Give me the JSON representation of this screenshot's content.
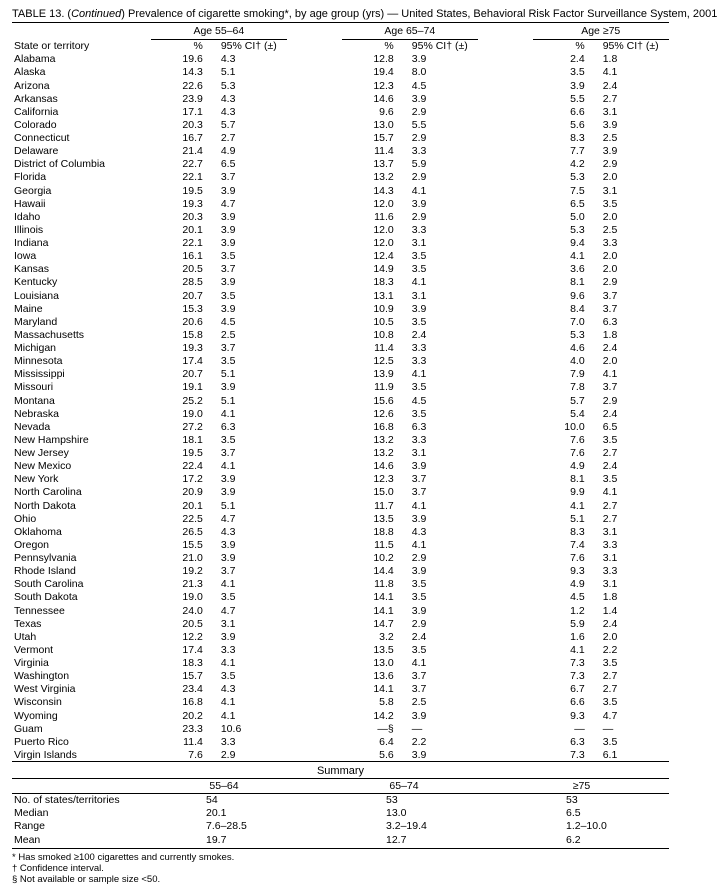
{
  "title_prefix": "TABLE 13. (",
  "title_cont": "Continued",
  "title_rest": ") Prevalence of cigarette smoking*, by age group (yrs) — United States, Behavioral Risk Factor Surveillance System, 2001",
  "group_labels": [
    "Age 55–64",
    "Age 65–74",
    "Age ≥75"
  ],
  "col1_header": "State or territory",
  "pct_header": "%",
  "ci_header": "95% CI† (±)",
  "rows": [
    {
      "s": "Alabama",
      "p1": "19.6",
      "c1": "4.3",
      "p2": "12.8",
      "c2": "3.9",
      "p3": "2.4",
      "c3": "1.8"
    },
    {
      "s": "Alaska",
      "p1": "14.3",
      "c1": "5.1",
      "p2": "19.4",
      "c2": "8.0",
      "p3": "3.5",
      "c3": "4.1"
    },
    {
      "s": "Arizona",
      "p1": "22.6",
      "c1": "5.3",
      "p2": "12.3",
      "c2": "4.5",
      "p3": "3.9",
      "c3": "2.4"
    },
    {
      "s": "Arkansas",
      "p1": "23.9",
      "c1": "4.3",
      "p2": "14.6",
      "c2": "3.9",
      "p3": "5.5",
      "c3": "2.7"
    },
    {
      "s": "California",
      "p1": "17.1",
      "c1": "4.3",
      "p2": "9.6",
      "c2": "2.9",
      "p3": "6.6",
      "c3": "3.1"
    },
    {
      "s": "Colorado",
      "p1": "20.3",
      "c1": "5.7",
      "p2": "13.0",
      "c2": "5.5",
      "p3": "5.6",
      "c3": "3.9"
    },
    {
      "s": "Connecticut",
      "p1": "16.7",
      "c1": "2.7",
      "p2": "15.7",
      "c2": "2.9",
      "p3": "8.3",
      "c3": "2.5"
    },
    {
      "s": "Delaware",
      "p1": "21.4",
      "c1": "4.9",
      "p2": "11.4",
      "c2": "3.3",
      "p3": "7.7",
      "c3": "3.9"
    },
    {
      "s": "District of Columbia",
      "p1": "22.7",
      "c1": "6.5",
      "p2": "13.7",
      "c2": "5.9",
      "p3": "4.2",
      "c3": "2.9"
    },
    {
      "s": "Florida",
      "p1": "22.1",
      "c1": "3.7",
      "p2": "13.2",
      "c2": "2.9",
      "p3": "5.3",
      "c3": "2.0"
    },
    {
      "s": "Georgia",
      "p1": "19.5",
      "c1": "3.9",
      "p2": "14.3",
      "c2": "4.1",
      "p3": "7.5",
      "c3": "3.1"
    },
    {
      "s": "Hawaii",
      "p1": "19.3",
      "c1": "4.7",
      "p2": "12.0",
      "c2": "3.9",
      "p3": "6.5",
      "c3": "3.5"
    },
    {
      "s": "Idaho",
      "p1": "20.3",
      "c1": "3.9",
      "p2": "11.6",
      "c2": "2.9",
      "p3": "5.0",
      "c3": "2.0"
    },
    {
      "s": "Illinois",
      "p1": "20.1",
      "c1": "3.9",
      "p2": "12.0",
      "c2": "3.3",
      "p3": "5.3",
      "c3": "2.5"
    },
    {
      "s": "Indiana",
      "p1": "22.1",
      "c1": "3.9",
      "p2": "12.0",
      "c2": "3.1",
      "p3": "9.4",
      "c3": "3.3"
    },
    {
      "s": "Iowa",
      "p1": "16.1",
      "c1": "3.5",
      "p2": "12.4",
      "c2": "3.5",
      "p3": "4.1",
      "c3": "2.0"
    },
    {
      "s": "Kansas",
      "p1": "20.5",
      "c1": "3.7",
      "p2": "14.9",
      "c2": "3.5",
      "p3": "3.6",
      "c3": "2.0"
    },
    {
      "s": "Kentucky",
      "p1": "28.5",
      "c1": "3.9",
      "p2": "18.3",
      "c2": "4.1",
      "p3": "8.1",
      "c3": "2.9"
    },
    {
      "s": "Louisiana",
      "p1": "20.7",
      "c1": "3.5",
      "p2": "13.1",
      "c2": "3.1",
      "p3": "9.6",
      "c3": "3.7"
    },
    {
      "s": "Maine",
      "p1": "15.3",
      "c1": "3.9",
      "p2": "10.9",
      "c2": "3.9",
      "p3": "8.4",
      "c3": "3.7"
    },
    {
      "s": "Maryland",
      "p1": "20.6",
      "c1": "4.5",
      "p2": "10.5",
      "c2": "3.5",
      "p3": "7.0",
      "c3": "6.3"
    },
    {
      "s": "Massachusetts",
      "p1": "15.8",
      "c1": "2.5",
      "p2": "10.8",
      "c2": "2.4",
      "p3": "5.3",
      "c3": "1.8"
    },
    {
      "s": "Michigan",
      "p1": "19.3",
      "c1": "3.7",
      "p2": "11.4",
      "c2": "3.3",
      "p3": "4.6",
      "c3": "2.4"
    },
    {
      "s": "Minnesota",
      "p1": "17.4",
      "c1": "3.5",
      "p2": "12.5",
      "c2": "3.3",
      "p3": "4.0",
      "c3": "2.0"
    },
    {
      "s": "Mississippi",
      "p1": "20.7",
      "c1": "5.1",
      "p2": "13.9",
      "c2": "4.1",
      "p3": "7.9",
      "c3": "4.1"
    },
    {
      "s": "Missouri",
      "p1": "19.1",
      "c1": "3.9",
      "p2": "11.9",
      "c2": "3.5",
      "p3": "7.8",
      "c3": "3.7"
    },
    {
      "s": "Montana",
      "p1": "25.2",
      "c1": "5.1",
      "p2": "15.6",
      "c2": "4.5",
      "p3": "5.7",
      "c3": "2.9"
    },
    {
      "s": "Nebraska",
      "p1": "19.0",
      "c1": "4.1",
      "p2": "12.6",
      "c2": "3.5",
      "p3": "5.4",
      "c3": "2.4"
    },
    {
      "s": "Nevada",
      "p1": "27.2",
      "c1": "6.3",
      "p2": "16.8",
      "c2": "6.3",
      "p3": "10.0",
      "c3": "6.5"
    },
    {
      "s": "New Hampshire",
      "p1": "18.1",
      "c1": "3.5",
      "p2": "13.2",
      "c2": "3.3",
      "p3": "7.6",
      "c3": "3.5"
    },
    {
      "s": "New Jersey",
      "p1": "19.5",
      "c1": "3.7",
      "p2": "13.2",
      "c2": "3.1",
      "p3": "7.6",
      "c3": "2.7"
    },
    {
      "s": "New Mexico",
      "p1": "22.4",
      "c1": "4.1",
      "p2": "14.6",
      "c2": "3.9",
      "p3": "4.9",
      "c3": "2.4"
    },
    {
      "s": "New York",
      "p1": "17.2",
      "c1": "3.9",
      "p2": "12.3",
      "c2": "3.7",
      "p3": "8.1",
      "c3": "3.5"
    },
    {
      "s": "North Carolina",
      "p1": "20.9",
      "c1": "3.9",
      "p2": "15.0",
      "c2": "3.7",
      "p3": "9.9",
      "c3": "4.1"
    },
    {
      "s": "North Dakota",
      "p1": "20.1",
      "c1": "5.1",
      "p2": "11.7",
      "c2": "4.1",
      "p3": "4.1",
      "c3": "2.7"
    },
    {
      "s": "Ohio",
      "p1": "22.5",
      "c1": "4.7",
      "p2": "13.5",
      "c2": "3.9",
      "p3": "5.1",
      "c3": "2.7"
    },
    {
      "s": "Oklahoma",
      "p1": "26.5",
      "c1": "4.3",
      "p2": "18.8",
      "c2": "4.3",
      "p3": "8.3",
      "c3": "3.1"
    },
    {
      "s": "Oregon",
      "p1": "15.5",
      "c1": "3.9",
      "p2": "11.5",
      "c2": "4.1",
      "p3": "7.4",
      "c3": "3.3"
    },
    {
      "s": "Pennsylvania",
      "p1": "21.0",
      "c1": "3.9",
      "p2": "10.2",
      "c2": "2.9",
      "p3": "7.6",
      "c3": "3.1"
    },
    {
      "s": "Rhode Island",
      "p1": "19.2",
      "c1": "3.7",
      "p2": "14.4",
      "c2": "3.9",
      "p3": "9.3",
      "c3": "3.3"
    },
    {
      "s": "South Carolina",
      "p1": "21.3",
      "c1": "4.1",
      "p2": "11.8",
      "c2": "3.5",
      "p3": "4.9",
      "c3": "3.1"
    },
    {
      "s": "South Dakota",
      "p1": "19.0",
      "c1": "3.5",
      "p2": "14.1",
      "c2": "3.5",
      "p3": "4.5",
      "c3": "1.8"
    },
    {
      "s": "Tennessee",
      "p1": "24.0",
      "c1": "4.7",
      "p2": "14.1",
      "c2": "3.9",
      "p3": "1.2",
      "c3": "1.4"
    },
    {
      "s": "Texas",
      "p1": "20.5",
      "c1": "3.1",
      "p2": "14.7",
      "c2": "2.9",
      "p3": "5.9",
      "c3": "2.4"
    },
    {
      "s": "Utah",
      "p1": "12.2",
      "c1": "3.9",
      "p2": "3.2",
      "c2": "2.4",
      "p3": "1.6",
      "c3": "2.0"
    },
    {
      "s": "Vermont",
      "p1": "17.4",
      "c1": "3.3",
      "p2": "13.5",
      "c2": "3.5",
      "p3": "4.1",
      "c3": "2.2"
    },
    {
      "s": "Virginia",
      "p1": "18.3",
      "c1": "4.1",
      "p2": "13.0",
      "c2": "4.1",
      "p3": "7.3",
      "c3": "3.5"
    },
    {
      "s": "Washington",
      "p1": "15.7",
      "c1": "3.5",
      "p2": "13.6",
      "c2": "3.7",
      "p3": "7.3",
      "c3": "2.7"
    },
    {
      "s": "West Virginia",
      "p1": "23.4",
      "c1": "4.3",
      "p2": "14.1",
      "c2": "3.7",
      "p3": "6.7",
      "c3": "2.7"
    },
    {
      "s": "Wisconsin",
      "p1": "16.8",
      "c1": "4.1",
      "p2": "5.8",
      "c2": "2.5",
      "p3": "6.6",
      "c3": "3.5"
    },
    {
      "s": "Wyoming",
      "p1": "20.2",
      "c1": "4.1",
      "p2": "14.2",
      "c2": "3.9",
      "p3": "9.3",
      "c3": "4.7"
    },
    {
      "s": "Guam",
      "p1": "23.3",
      "c1": "10.6",
      "p2": "—§",
      "c2": "—",
      "p3": "—",
      "c3": "—"
    },
    {
      "s": "Puerto Rico",
      "p1": "11.4",
      "c1": "3.3",
      "p2": "6.4",
      "c2": "2.2",
      "p3": "6.3",
      "c3": "3.5"
    },
    {
      "s": "Virgin Islands",
      "p1": "7.6",
      "c1": "2.9",
      "p2": "5.6",
      "c2": "3.9",
      "p3": "7.3",
      "c3": "6.1"
    }
  ],
  "summary_title": "Summary",
  "summary_headers": [
    "55–64",
    "65–74",
    "≥75"
  ],
  "summary_rows": [
    {
      "label": "No. of states/territories",
      "v1": "54",
      "v2": "53",
      "v3": "53"
    },
    {
      "label": "Median",
      "v1": "20.1",
      "v2": "13.0",
      "v3": "6.5"
    },
    {
      "label": "Range",
      "v1": "7.6–28.5",
      "v2": "3.2–19.4",
      "v3": "1.2–10.0"
    },
    {
      "label": "Mean",
      "v1": "19.7",
      "v2": "12.7",
      "v3": "6.2"
    }
  ],
  "footnotes": [
    "* Has smoked ≥100 cigarettes and currently smokes.",
    "† Confidence interval.",
    "§ Not available or sample size <50."
  ]
}
